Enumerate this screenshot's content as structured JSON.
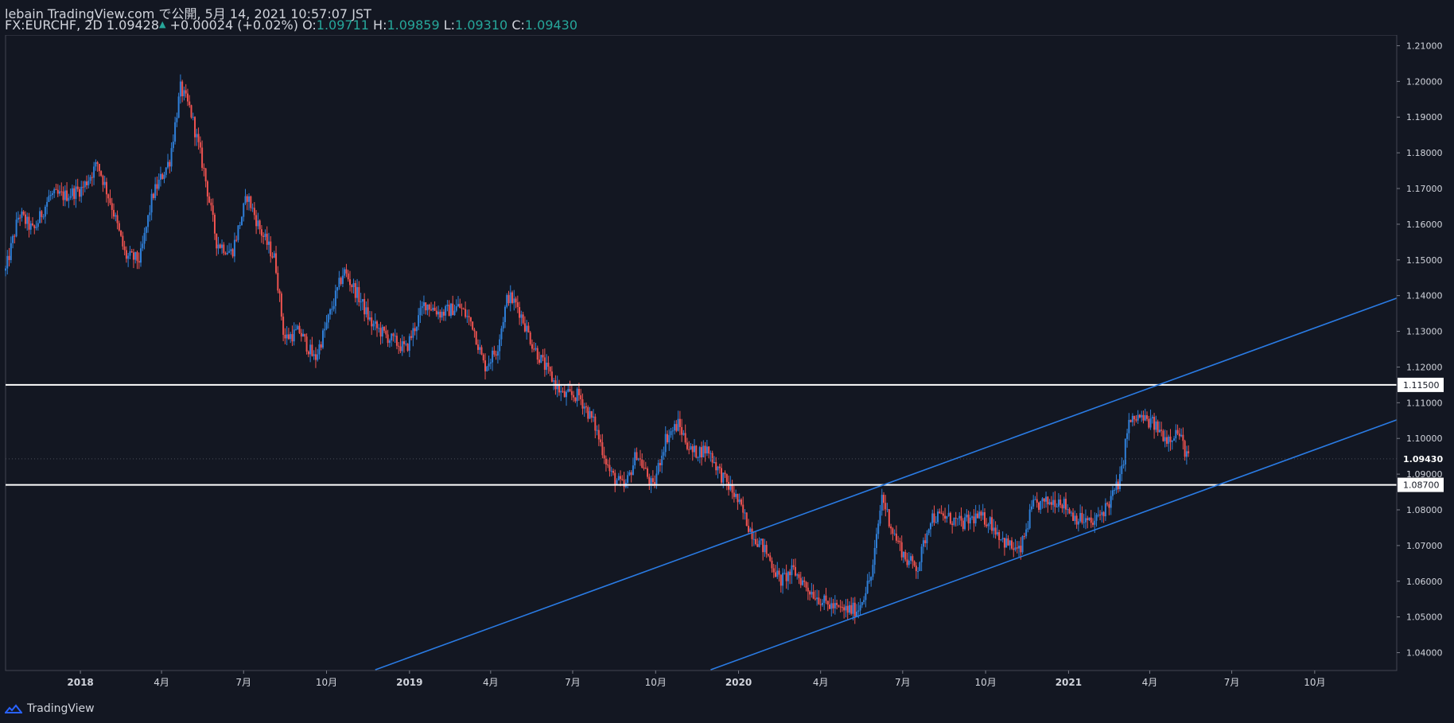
{
  "header": {
    "publisher_line": "lebain TradingView.com で公開, 5月 14, 2021 10:57:07 JST",
    "symbol": "FX:EURCHF, 2D",
    "last": "1.09428",
    "change_arrow": "▲",
    "change": "+0.00024 (+0.02%)",
    "o_label": "O:",
    "o_value": "1.09711",
    "h_label": "H:",
    "h_value": "1.09859",
    "l_label": "L:",
    "l_value": "1.09310",
    "c_label": "C:",
    "c_value": "1.09430"
  },
  "footer": {
    "brand": "TradingView"
  },
  "colors": {
    "background": "#131722",
    "up_candle": "#2f7fd8",
    "down_candle": "#ef5350",
    "trendline": "#2a7be4",
    "horizontal_line": "#ffffff",
    "axis_text": "#d1d4dc",
    "price_up_text": "#26a69a"
  },
  "chart_data": {
    "type": "candlestick",
    "symbol": "FX:EURCHF",
    "timeframe": "2D",
    "y_range": [
      1.035,
      1.213
    ],
    "x_range": [
      "2017-10-10",
      "2021-12-31"
    ],
    "y_ticks": [
      "1.04000",
      "1.05000",
      "1.06000",
      "1.07000",
      "1.08000",
      "1.09000",
      "1.10000",
      "1.11000",
      "1.12000",
      "1.13000",
      "1.14000",
      "1.15000",
      "1.16000",
      "1.17000",
      "1.18000",
      "1.19000",
      "1.20000",
      "1.21000"
    ],
    "x_ticks": [
      {
        "date": "2018-01-01",
        "label": "2018",
        "bold": true
      },
      {
        "date": "2018-04-01",
        "label": "4月",
        "bold": false
      },
      {
        "date": "2018-07-01",
        "label": "7月",
        "bold": false
      },
      {
        "date": "2018-10-01",
        "label": "10月",
        "bold": false
      },
      {
        "date": "2019-01-01",
        "label": "2019",
        "bold": true
      },
      {
        "date": "2019-04-01",
        "label": "4月",
        "bold": false
      },
      {
        "date": "2019-07-01",
        "label": "7月",
        "bold": false
      },
      {
        "date": "2019-10-01",
        "label": "10月",
        "bold": false
      },
      {
        "date": "2020-01-01",
        "label": "2020",
        "bold": true
      },
      {
        "date": "2020-04-01",
        "label": "4月",
        "bold": false
      },
      {
        "date": "2020-07-01",
        "label": "7月",
        "bold": false
      },
      {
        "date": "2020-10-01",
        "label": "10月",
        "bold": false
      },
      {
        "date": "2021-01-01",
        "label": "2021",
        "bold": true
      },
      {
        "date": "2021-04-01",
        "label": "4月",
        "bold": false
      },
      {
        "date": "2021-07-01",
        "label": "7月",
        "bold": false
      },
      {
        "date": "2021-10-01",
        "label": "10月",
        "bold": false
      }
    ],
    "price_path": [
      [
        "2017-10-10",
        1.147
      ],
      [
        "2017-10-25",
        1.163
      ],
      [
        "2017-11-10",
        1.158
      ],
      [
        "2017-11-28",
        1.168
      ],
      [
        "2017-12-15",
        1.168
      ],
      [
        "2018-01-03",
        1.17
      ],
      [
        "2018-01-20",
        1.177
      ],
      [
        "2018-02-05",
        1.165
      ],
      [
        "2018-02-20",
        1.151
      ],
      [
        "2018-03-08",
        1.15
      ],
      [
        "2018-03-22",
        1.168
      ],
      [
        "2018-04-10",
        1.178
      ],
      [
        "2018-04-22",
        1.198
      ],
      [
        "2018-05-03",
        1.192
      ],
      [
        "2018-05-18",
        1.175
      ],
      [
        "2018-06-01",
        1.155
      ],
      [
        "2018-06-18",
        1.152
      ],
      [
        "2018-07-05",
        1.168
      ],
      [
        "2018-07-20",
        1.158
      ],
      [
        "2018-08-05",
        1.15
      ],
      [
        "2018-08-15",
        1.128
      ],
      [
        "2018-09-01",
        1.13
      ],
      [
        "2018-09-18",
        1.122
      ],
      [
        "2018-10-05",
        1.135
      ],
      [
        "2018-10-20",
        1.147
      ],
      [
        "2018-11-05",
        1.14
      ],
      [
        "2018-11-20",
        1.132
      ],
      [
        "2018-12-10",
        1.128
      ],
      [
        "2018-12-28",
        1.125
      ],
      [
        "2019-01-18",
        1.138
      ],
      [
        "2019-02-05",
        1.135
      ],
      [
        "2019-02-25",
        1.137
      ],
      [
        "2019-03-12",
        1.132
      ],
      [
        "2019-03-25",
        1.12
      ],
      [
        "2019-04-08",
        1.125
      ],
      [
        "2019-04-20",
        1.14
      ],
      [
        "2019-05-01",
        1.137
      ],
      [
        "2019-05-18",
        1.126
      ],
      [
        "2019-06-05",
        1.118
      ],
      [
        "2019-06-20",
        1.112
      ],
      [
        "2019-07-08",
        1.112
      ],
      [
        "2019-07-25",
        1.104
      ],
      [
        "2019-08-12",
        1.09
      ],
      [
        "2019-08-28",
        1.086
      ],
      [
        "2019-09-10",
        1.096
      ],
      [
        "2019-09-28",
        1.086
      ],
      [
        "2019-10-12",
        1.1
      ],
      [
        "2019-10-26",
        1.104
      ],
      [
        "2019-11-10",
        1.096
      ],
      [
        "2019-11-28",
        1.097
      ],
      [
        "2019-12-12",
        1.09
      ],
      [
        "2019-12-28",
        1.084
      ],
      [
        "2020-01-15",
        1.074
      ],
      [
        "2020-02-01",
        1.068
      ],
      [
        "2020-02-16",
        1.06
      ],
      [
        "2020-03-02",
        1.063
      ],
      [
        "2020-03-18",
        1.058
      ],
      [
        "2020-04-05",
        1.054
      ],
      [
        "2020-04-22",
        1.052
      ],
      [
        "2020-05-12",
        1.052
      ],
      [
        "2020-05-28",
        1.062
      ],
      [
        "2020-06-08",
        1.084
      ],
      [
        "2020-06-20",
        1.074
      ],
      [
        "2020-07-05",
        1.066
      ],
      [
        "2020-07-18",
        1.064
      ],
      [
        "2020-08-01",
        1.078
      ],
      [
        "2020-08-18",
        1.078
      ],
      [
        "2020-09-05",
        1.076
      ],
      [
        "2020-09-20",
        1.078
      ],
      [
        "2020-10-05",
        1.077
      ],
      [
        "2020-10-22",
        1.071
      ],
      [
        "2020-11-08",
        1.068
      ],
      [
        "2020-11-22",
        1.081
      ],
      [
        "2020-12-08",
        1.082
      ],
      [
        "2020-12-22",
        1.083
      ],
      [
        "2021-01-08",
        1.078
      ],
      [
        "2021-01-28",
        1.076
      ],
      [
        "2021-02-15",
        1.082
      ],
      [
        "2021-02-28",
        1.089
      ],
      [
        "2021-03-08",
        1.104
      ],
      [
        "2021-03-20",
        1.106
      ],
      [
        "2021-04-05",
        1.104
      ],
      [
        "2021-04-20",
        1.1
      ],
      [
        "2021-05-02",
        1.102
      ],
      [
        "2021-05-14",
        1.0943
      ]
    ],
    "horizontal_lines": [
      {
        "price": 1.115,
        "label": "1.11500",
        "color": "#ffffff"
      },
      {
        "price": 1.087,
        "label": "1.08700",
        "color": "#ffffff"
      }
    ],
    "current_price": {
      "price": 1.0943,
      "label": "1.09430"
    },
    "trendlines": [
      {
        "name": "channel-upper",
        "p1": [
          "2018-11-24",
          1.0352
        ],
        "p2": [
          "2021-12-31",
          1.1393
        ],
        "color": "#2a7be4"
      },
      {
        "name": "channel-lower",
        "p1": [
          "2019-12-01",
          1.0352
        ],
        "p2": [
          "2021-12-31",
          1.1052
        ],
        "color": "#2a7be4"
      }
    ],
    "grid": false,
    "legend": "none"
  }
}
